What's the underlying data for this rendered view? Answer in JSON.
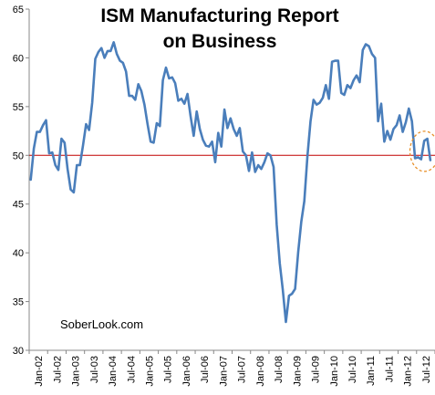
{
  "chart_data": {
    "type": "line",
    "title": "ISM Manufacturing Report on Business",
    "xlabel": "",
    "ylabel": "",
    "ylim": [
      30,
      65
    ],
    "yticks": [
      30,
      35,
      40,
      45,
      50,
      55,
      60,
      65
    ],
    "xtick_labels": [
      "Jan-02",
      "Jul-02",
      "Jan-03",
      "Jul-03",
      "Jan-04",
      "Jul-04",
      "Jan-05",
      "Jul-05",
      "Jan-06",
      "Jul-06",
      "Jan-07",
      "Jul-07",
      "Jan-08",
      "Jul-08",
      "Jan-09",
      "Jul-09",
      "Jan-10",
      "Jul-10",
      "Jan-11",
      "Jul-11",
      "Jan-12",
      "Jul-12"
    ],
    "grid": false,
    "reference_line": {
      "value": 50,
      "color": "#c00000"
    },
    "annotation": "SoberLook.com",
    "highlight": {
      "note": "dashed circle around latest readings",
      "color": "#e8902a"
    },
    "series": [
      {
        "color": "#4a7ebb",
        "start_month": "Jan-02",
        "values": [
          47.5,
          50.7,
          52.4,
          52.4,
          53.1,
          53.6,
          50.2,
          50.3,
          49.0,
          48.5,
          51.7,
          51.3,
          48.6,
          46.5,
          46.2,
          49.0,
          49.0,
          51.0,
          53.2,
          52.6,
          55.4,
          59.9,
          60.6,
          61.0,
          60.0,
          60.7,
          60.7,
          61.6,
          60.4,
          59.7,
          59.5,
          58.6,
          56.1,
          56.1,
          55.7,
          57.3,
          56.6,
          55.2,
          53.2,
          51.4,
          51.3,
          53.3,
          53.0,
          57.7,
          59.0,
          57.9,
          58.0,
          57.4,
          55.6,
          55.8,
          55.3,
          56.3,
          54.0,
          52.0,
          54.5,
          52.7,
          51.6,
          51.0,
          50.9,
          51.4,
          49.3,
          52.3,
          50.9,
          54.7,
          52.8,
          53.8,
          52.7,
          52.0,
          52.8,
          50.4,
          50.0,
          48.4,
          50.3,
          48.3,
          49.0,
          48.6,
          49.3,
          50.2,
          50.0,
          48.8,
          42.9,
          38.9,
          36.2,
          32.9,
          35.6,
          35.8,
          36.3,
          40.1,
          43.2,
          45.3,
          49.9,
          53.5,
          55.7,
          55.2,
          55.4,
          55.9,
          57.2,
          55.8,
          59.6,
          59.7,
          59.7,
          56.4,
          56.2,
          57.2,
          56.9,
          57.7,
          58.2,
          57.5,
          60.8,
          61.4,
          61.2,
          60.4,
          60.0,
          53.5,
          55.3,
          51.4,
          52.5,
          51.6,
          52.7,
          53.1,
          54.1,
          52.4,
          53.4,
          54.8,
          53.5,
          49.7,
          49.8,
          49.6,
          51.5,
          51.7,
          49.5
        ]
      }
    ]
  }
}
